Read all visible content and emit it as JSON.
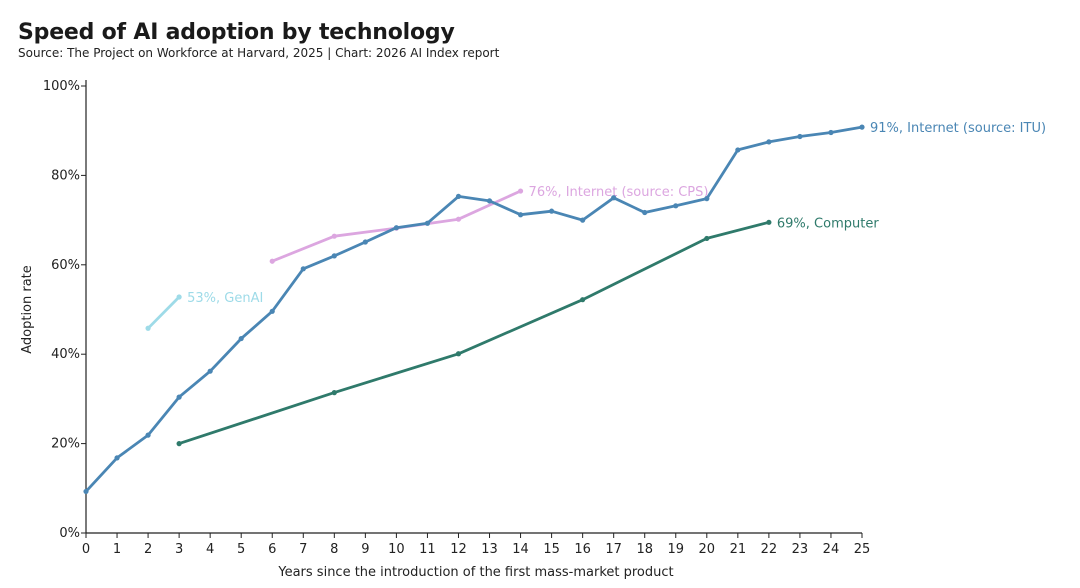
{
  "title": "Speed of AI adoption by technology",
  "subtitle": "Source: The Project on Workforce at Harvard, 2025 | Chart: 2026 AI Index report",
  "chart_data": {
    "type": "line",
    "xlabel": "Years since the introduction of the first mass-market product",
    "ylabel": "Adoption rate",
    "xlim": [
      0,
      25
    ],
    "ylim": [
      0,
      100
    ],
    "xticks": [
      "0",
      "1",
      "2",
      "3",
      "4",
      "5",
      "6",
      "7",
      "8",
      "9",
      "10",
      "11",
      "12",
      "13",
      "14",
      "15",
      "16",
      "17",
      "18",
      "19",
      "20",
      "21",
      "22",
      "23",
      "24",
      "25"
    ],
    "yticks": [
      "0%",
      "20%",
      "40%",
      "60%",
      "80%",
      "100%"
    ],
    "grid": false,
    "series": [
      {
        "label": "91%, Internet (source: ITU)",
        "color": "#4a86b4",
        "x": [
          0,
          1,
          2,
          3,
          4,
          5,
          6,
          7,
          8,
          9,
          10,
          11,
          12,
          13,
          14,
          15,
          16,
          17,
          18,
          19,
          20,
          21,
          22,
          23,
          24,
          25
        ],
        "y": [
          9.3,
          16.8,
          21.9,
          30.4,
          36.2,
          43.5,
          49.6,
          59.1,
          62.0,
          65.1,
          68.3,
          69.3,
          75.3,
          74.3,
          71.2,
          72.0,
          70.0,
          75.0,
          71.7,
          73.2,
          74.8,
          85.7,
          87.5,
          88.7,
          89.6,
          90.8
        ]
      },
      {
        "label": "76%, Internet (source: CPS)",
        "color": "#dca6e0",
        "x": [
          6,
          8,
          10,
          12,
          14
        ],
        "y": [
          60.8,
          66.4,
          68.2,
          70.2,
          76.5
        ]
      },
      {
        "label": "53%, GenAI",
        "color": "#9edbe8",
        "x": [
          2,
          3
        ],
        "y": [
          45.8,
          52.8
        ]
      },
      {
        "label": "69%, Computer",
        "color": "#2f7a6b",
        "x": [
          3,
          8,
          12,
          16,
          20,
          22
        ],
        "y": [
          20.0,
          31.4,
          40.1,
          52.2,
          65.9,
          69.5
        ]
      }
    ]
  }
}
